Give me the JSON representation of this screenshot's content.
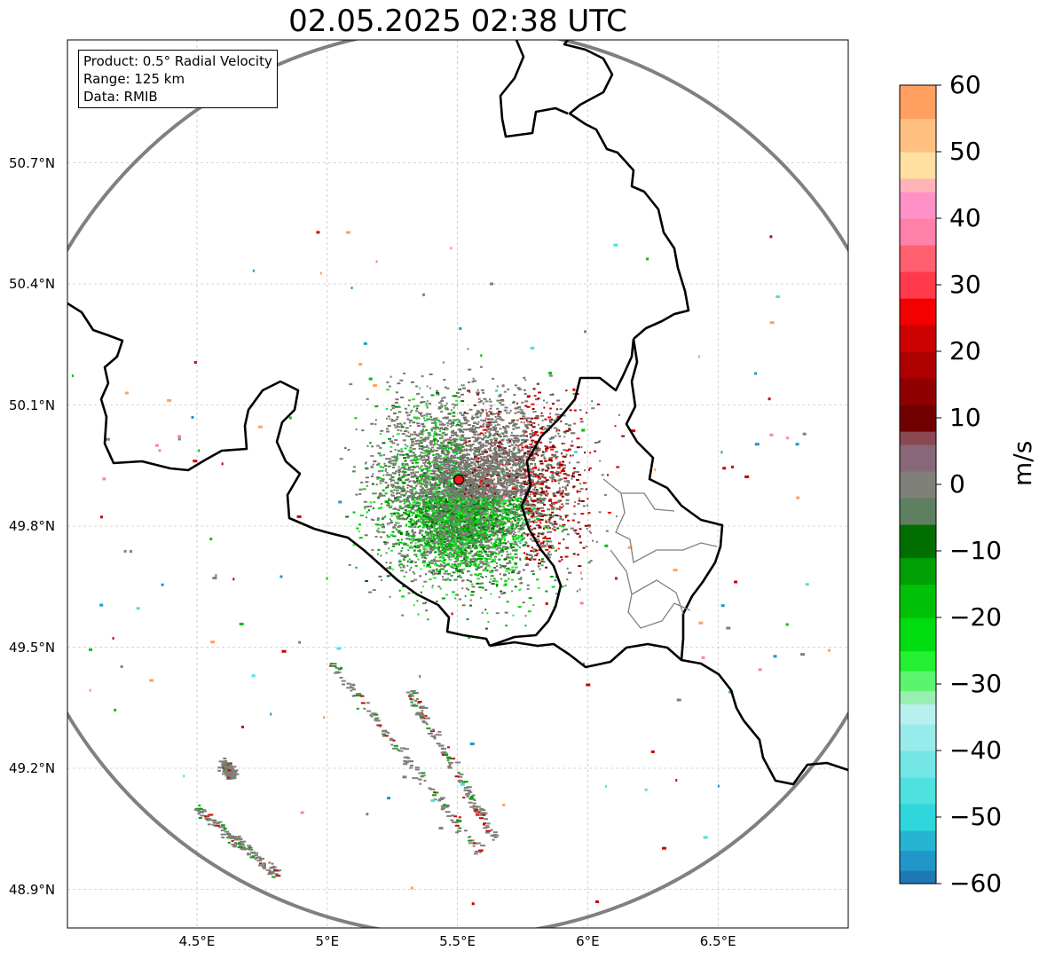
{
  "title": "02.05.2025 02:38 UTC",
  "info_box": {
    "product": "Product: 0.5° Radial Velocity",
    "range": "Range: 125 km",
    "data": "Data: RMIB"
  },
  "map": {
    "lon_range": [
      4.0,
      7.0
    ],
    "lat_range": [
      48.8,
      51.0
    ],
    "lat_ticks": [
      {
        "value": 50.7,
        "label": "50.7°N"
      },
      {
        "value": 50.4,
        "label": "50.4°N"
      },
      {
        "value": 50.1,
        "label": "50.1°N"
      },
      {
        "value": 49.8,
        "label": "49.8°N"
      },
      {
        "value": 49.5,
        "label": "49.5°N"
      },
      {
        "value": 49.2,
        "label": "49.2°N"
      },
      {
        "value": 48.9,
        "label": "48.9°N"
      }
    ],
    "lon_ticks": [
      {
        "value": 4.5,
        "label": "4.5°E"
      },
      {
        "value": 5.0,
        "label": "5°E"
      },
      {
        "value": 5.5,
        "label": "5.5°E"
      },
      {
        "value": 6.0,
        "label": "6°E"
      },
      {
        "value": 6.5,
        "label": "6.5°E"
      }
    ],
    "grid": true,
    "radar_site": {
      "lon": 5.505,
      "lat": 49.915,
      "color": "#e8191b"
    },
    "range_km": 125
  },
  "colorbar": {
    "label": "m/s",
    "min": -60,
    "max": 60,
    "ticks": [
      {
        "value": 60,
        "label": "60"
      },
      {
        "value": 50,
        "label": "50"
      },
      {
        "value": 40,
        "label": "40"
      },
      {
        "value": 30,
        "label": "30"
      },
      {
        "value": 20,
        "label": "20"
      },
      {
        "value": 10,
        "label": "10"
      },
      {
        "value": 0,
        "label": "0"
      },
      {
        "value": -10,
        "label": "−10"
      },
      {
        "value": -20,
        "label": "−20"
      },
      {
        "value": -30,
        "label": "−30"
      },
      {
        "value": -40,
        "label": "−40"
      },
      {
        "value": -50,
        "label": "−50"
      },
      {
        "value": -60,
        "label": "−60"
      }
    ],
    "bands": [
      {
        "from": -60,
        "to": -58,
        "color": "#1f77b4"
      },
      {
        "from": -58,
        "to": -55,
        "color": "#2196c8"
      },
      {
        "from": -55,
        "to": -52,
        "color": "#26b4d2"
      },
      {
        "from": -52,
        "to": -48,
        "color": "#2fd6dc"
      },
      {
        "from": -48,
        "to": -44,
        "color": "#4fe0e0"
      },
      {
        "from": -44,
        "to": -40,
        "color": "#74e6e6"
      },
      {
        "from": -40,
        "to": -36,
        "color": "#98ecec"
      },
      {
        "from": -36,
        "to": -33,
        "color": "#b8f0f0"
      },
      {
        "from": -33,
        "to": -31,
        "color": "#98f0b0"
      },
      {
        "from": -31,
        "to": -28,
        "color": "#5cf46e"
      },
      {
        "from": -28,
        "to": -25,
        "color": "#22f030"
      },
      {
        "from": -25,
        "to": -20,
        "color": "#00dc10"
      },
      {
        "from": -20,
        "to": -15,
        "color": "#00c008"
      },
      {
        "from": -15,
        "to": -11,
        "color": "#00a004"
      },
      {
        "from": -11,
        "to": -6,
        "color": "#006e00"
      },
      {
        "from": -6,
        "to": -2,
        "color": "#5e8060"
      },
      {
        "from": -2,
        "to": 2,
        "color": "#80807a"
      },
      {
        "from": 2,
        "to": 6,
        "color": "#886878"
      },
      {
        "from": 6,
        "to": 8,
        "color": "#8a4850"
      },
      {
        "from": 8,
        "to": 12,
        "color": "#700000"
      },
      {
        "from": 12,
        "to": 16,
        "color": "#900000"
      },
      {
        "from": 16,
        "to": 20,
        "color": "#ae0000"
      },
      {
        "from": 20,
        "to": 24,
        "color": "#cc0000"
      },
      {
        "from": 24,
        "to": 28,
        "color": "#f40000"
      },
      {
        "from": 28,
        "to": 32,
        "color": "#ff3a4a"
      },
      {
        "from": 32,
        "to": 36,
        "color": "#ff6070"
      },
      {
        "from": 36,
        "to": 40,
        "color": "#ff80a8"
      },
      {
        "from": 40,
        "to": 44,
        "color": "#ff90c8"
      },
      {
        "from": 44,
        "to": 46,
        "color": "#ffb4b8"
      },
      {
        "from": 46,
        "to": 50,
        "color": "#ffe0a0"
      },
      {
        "from": 50,
        "to": 55,
        "color": "#ffc080"
      },
      {
        "from": 55,
        "to": 60,
        "color": "#ffa060"
      }
    ]
  },
  "colors": {
    "range_ring": "#808080",
    "border": "#000000",
    "admin_border": "#808080",
    "grid": "#b0b0b0"
  }
}
